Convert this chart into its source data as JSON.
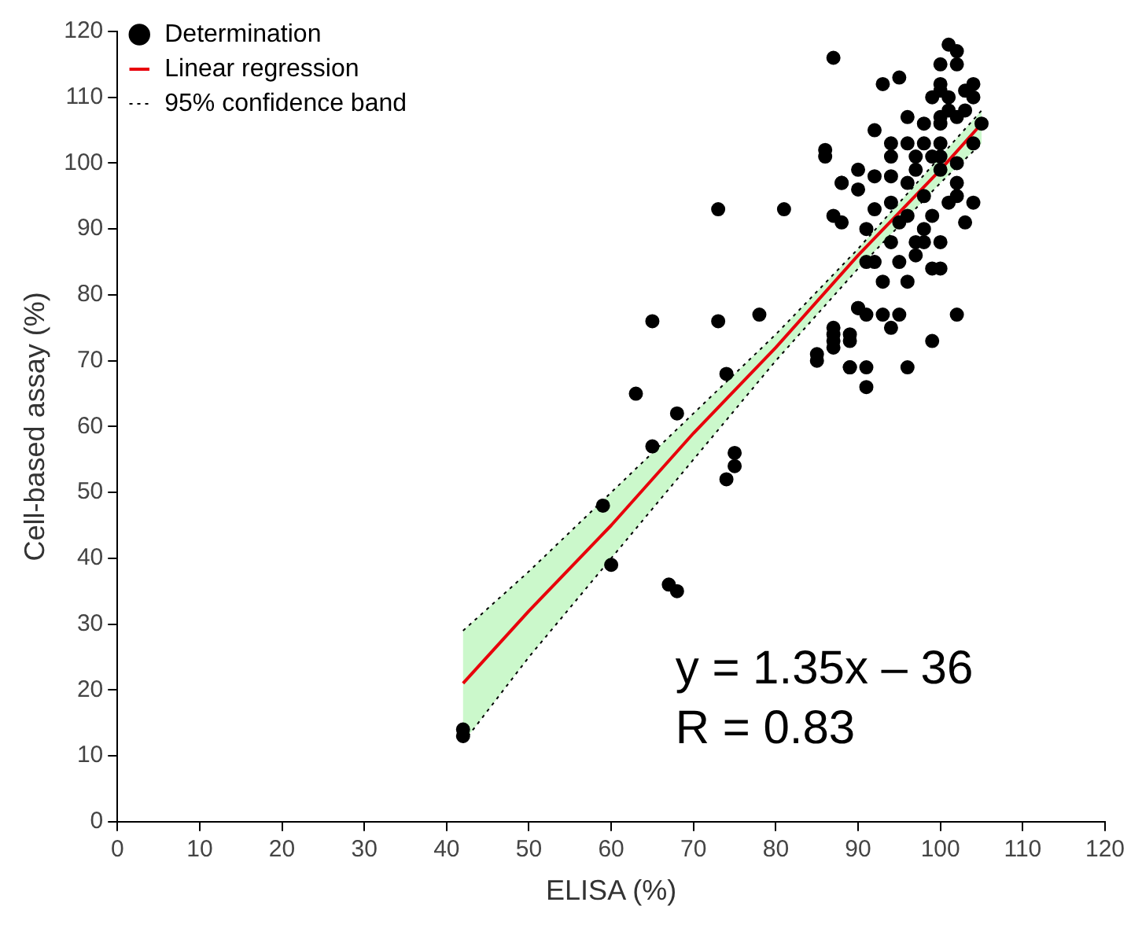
{
  "chart_data": {
    "type": "scatter",
    "xlabel": "ELISA (%)",
    "ylabel": "Cell-based assay (%)",
    "xlim": [
      0,
      120
    ],
    "xticks": [
      0,
      10,
      20,
      30,
      40,
      50,
      60,
      70,
      80,
      90,
      100,
      110,
      120
    ],
    "ylim": [
      0,
      120
    ],
    "yticks": [
      0,
      10,
      20,
      30,
      40,
      50,
      60,
      70,
      80,
      90,
      100,
      110,
      120
    ],
    "grid": false,
    "legend": "top left",
    "annotations": [
      "y = 1.35x – 36",
      "R = 0.83"
    ],
    "series": [
      {
        "name": "Determination",
        "marker": "circle",
        "color": "#000000",
        "x": [
          42,
          42,
          59,
          60,
          63,
          65,
          65,
          67,
          68,
          68,
          73,
          73,
          74,
          74,
          75,
          75,
          78,
          81,
          85,
          86,
          87,
          87,
          87,
          88,
          88,
          89,
          89,
          90,
          101,
          102,
          100,
          102,
          93,
          95,
          100,
          100,
          104,
          103,
          101,
          104,
          99,
          101,
          103,
          96,
          100,
          102,
          98,
          100,
          105,
          92,
          86,
          94,
          96,
          98,
          100,
          104,
          94,
          97,
          99,
          100,
          102,
          90,
          92,
          94,
          97,
          100,
          88,
          90,
          96,
          102,
          98,
          102,
          87,
          92,
          94,
          96,
          99,
          101,
          104,
          103,
          91,
          95,
          98,
          94,
          98,
          100,
          97,
          91,
          92,
          95,
          97,
          99,
          100,
          96,
          93,
          90,
          91,
          93,
          95,
          94,
          102,
          87,
          89,
          87,
          85,
          89,
          91,
          96,
          99,
          91
        ],
        "values": [
          14,
          13,
          48,
          39,
          65,
          57,
          76,
          36,
          35,
          62,
          76,
          93,
          52,
          68,
          54,
          56,
          77,
          93,
          70,
          101,
          116,
          72,
          74,
          91,
          97,
          69,
          73,
          78,
          118,
          117,
          115,
          115,
          112,
          113,
          112,
          111,
          112,
          111,
          110,
          110,
          110,
          108,
          108,
          107,
          107,
          107,
          106,
          106,
          106,
          105,
          102,
          103,
          103,
          103,
          103,
          103,
          101,
          101,
          101,
          101,
          100,
          99,
          98,
          98,
          99,
          99,
          97,
          96,
          97,
          97,
          95,
          95,
          92,
          93,
          94,
          92,
          92,
          94,
          94,
          91,
          90,
          91,
          90,
          88,
          88,
          88,
          88,
          85,
          85,
          85,
          86,
          84,
          84,
          82,
          82,
          78,
          77,
          77,
          77,
          75,
          77,
          75,
          74,
          73,
          71,
          69,
          69,
          69,
          73,
          66
        ]
      },
      {
        "name": "Linear regression",
        "type": "line",
        "color": "#e8000b",
        "x": [
          42,
          50,
          60,
          70,
          80,
          90,
          100,
          105
        ],
        "values": [
          21,
          32,
          45,
          59,
          72,
          86,
          99,
          106
        ],
        "lower": [
          12,
          25,
          40,
          55,
          70,
          84,
          97,
          103
        ],
        "upper": [
          29,
          38,
          50,
          62,
          74,
          87,
          101,
          108
        ]
      },
      {
        "name": "95% confidence band",
        "type": "line",
        "line_style": "dotted",
        "color": "#000000",
        "x": [
          42,
          50,
          60,
          70,
          80,
          90,
          100,
          105
        ],
        "values": [
          29,
          38,
          50,
          62,
          74,
          87,
          101,
          108
        ]
      },
      {
        "type": "line",
        "line_style": "dotted",
        "color": "#000000",
        "x": [
          42,
          50,
          60,
          70,
          80,
          90,
          100,
          105
        ],
        "values": [
          12,
          25,
          40,
          55,
          70,
          84,
          97,
          103
        ]
      }
    ]
  }
}
